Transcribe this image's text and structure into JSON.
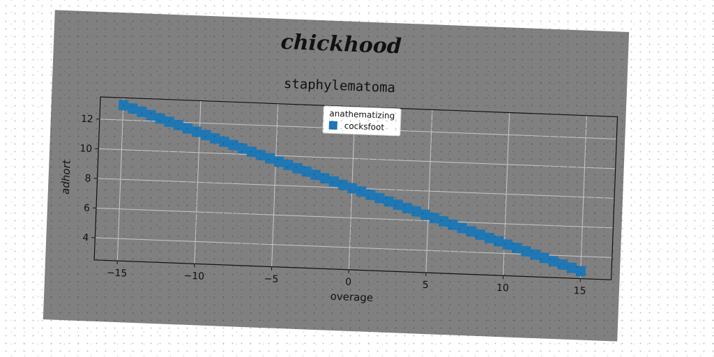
{
  "figure": {
    "suptitle": "chickhood",
    "background": "#808080"
  },
  "chart_data": {
    "type": "heatmap",
    "title": "staphylematoma",
    "xlabel": "overage",
    "ylabel": "adhort",
    "xlim": [
      -16.5,
      17
    ],
    "ylim": [
      2.5,
      13.5
    ],
    "xticks": [
      -15,
      -10,
      -5,
      0,
      5,
      10,
      15
    ],
    "yticks": [
      4,
      6,
      8,
      10,
      12
    ],
    "grid": true,
    "legend": {
      "title": "anathematizing",
      "placement": "top-center",
      "entries": [
        {
          "label": "cocksfoot",
          "color": "#1f77b4"
        }
      ]
    },
    "series": [
      {
        "name": "cocksfoot",
        "color": "#1f77b4",
        "x_range": [
          -15,
          15
        ],
        "y_at_x_min": 13.0,
        "y_at_x_max": 3.0,
        "band_halfwidth_y": 0.35,
        "bin_width_x": 0.6
      }
    ]
  }
}
